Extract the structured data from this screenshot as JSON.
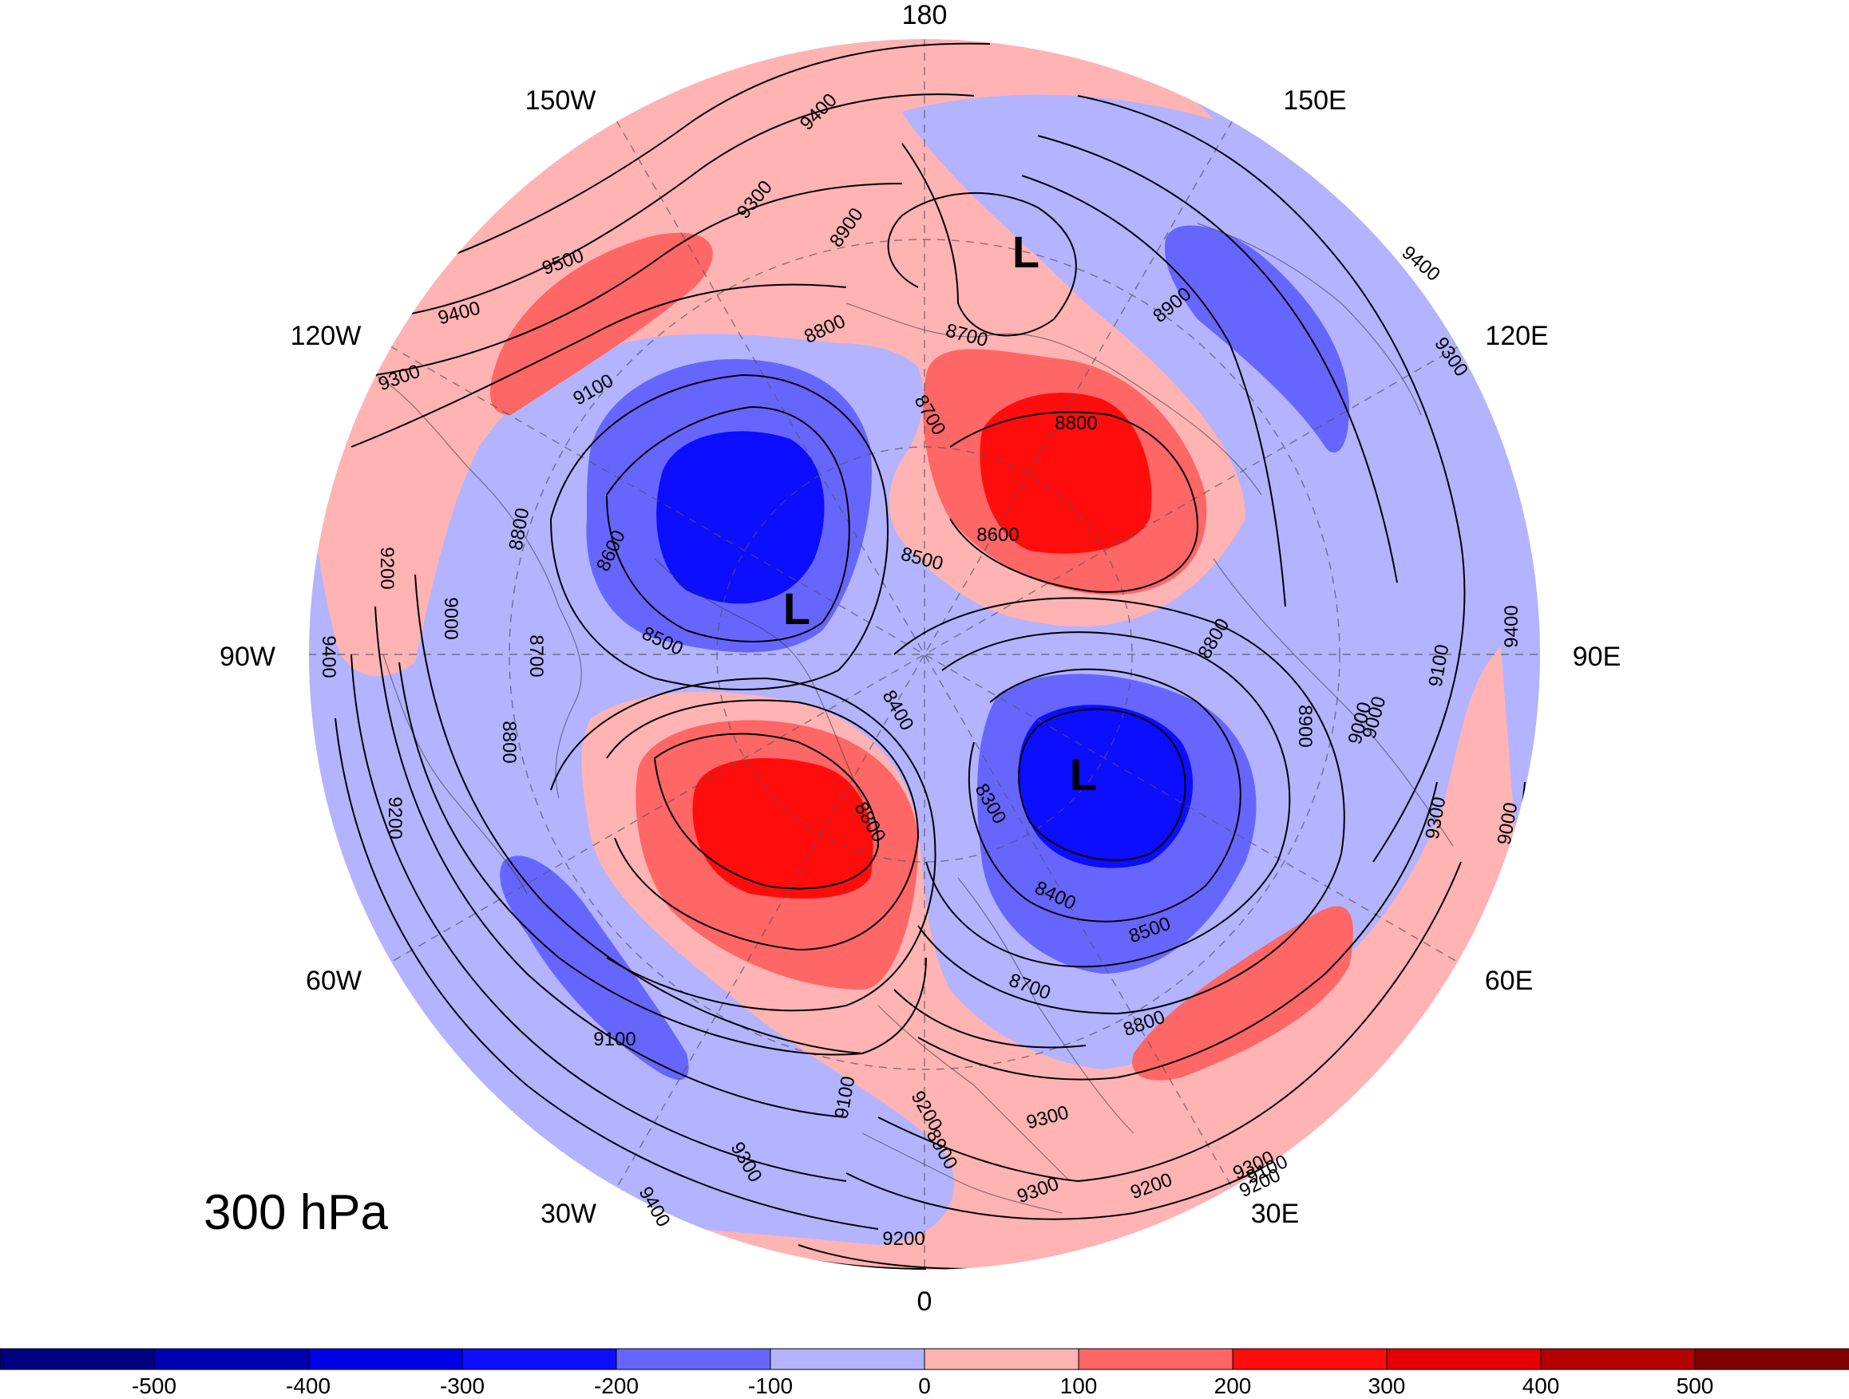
{
  "map": {
    "level_label": "300 hPa",
    "longitude_labels": [
      {
        "text": "180",
        "lon": 180
      },
      {
        "text": "150E",
        "lon": 150
      },
      {
        "text": "120E",
        "lon": 120
      },
      {
        "text": "90E",
        "lon": 90
      },
      {
        "text": "60E",
        "lon": 60
      },
      {
        "text": "30E",
        "lon": 30
      },
      {
        "text": "0",
        "lon": 0
      },
      {
        "text": "30W",
        "lon": -30
      },
      {
        "text": "60W",
        "lon": -60
      },
      {
        "text": "90W",
        "lon": -90
      },
      {
        "text": "120W",
        "lon": -120
      },
      {
        "text": "150W",
        "lon": -150
      }
    ],
    "low_markers": [
      "L",
      "L",
      "L"
    ],
    "contour_labels": [
      "9400",
      "9300",
      "8900",
      "9500",
      "9400",
      "9300",
      "9100",
      "8800",
      "8700",
      "8700",
      "8800",
      "8900",
      "9400",
      "9300",
      "8600",
      "8500",
      "8600",
      "8800",
      "9200",
      "9000",
      "8800",
      "8700",
      "8500",
      "8400",
      "9400",
      "8800",
      "8900",
      "8800",
      "8300",
      "8400",
      "8500",
      "8700",
      "8800",
      "9200",
      "9100",
      "9000",
      "9100",
      "9200",
      "9300",
      "8900",
      "9300",
      "9200",
      "9100",
      "9000",
      "9000",
      "9100",
      "9200",
      "9300",
      "9200",
      "9300",
      "9400",
      "9400",
      "9300"
    ]
  },
  "colorbar": {
    "tick_labels": [
      "-500",
      "-400",
      "-300",
      "-200",
      "-100",
      "0",
      "100",
      "200",
      "300",
      "400",
      "500"
    ],
    "colors": [
      "#000080",
      "#0000b3",
      "#0000e6",
      "#0d0dff",
      "#6666ff",
      "#b3b3ff",
      "#ffb3b3",
      "#ff6666",
      "#ff0d0d",
      "#e60000",
      "#b30000",
      "#800000"
    ]
  }
}
